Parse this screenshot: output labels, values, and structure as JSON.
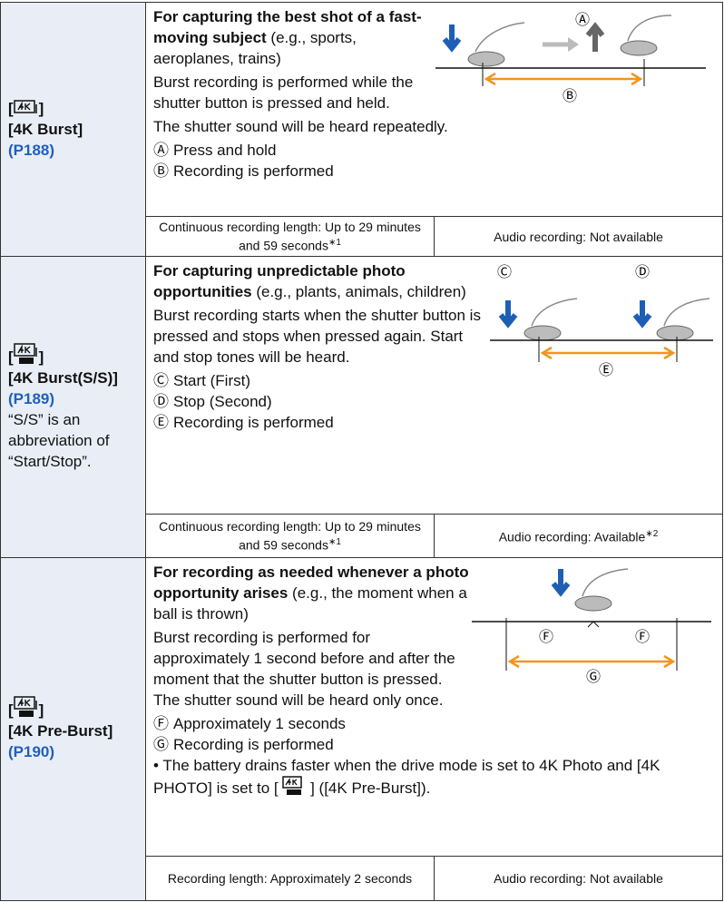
{
  "bracket_open": "[",
  "bracket_close": "]",
  "rows": [
    {
      "mode": {
        "label": "[4K Burst]",
        "page": "(P188)"
      },
      "heading": "For capturing the best shot of a fast-moving subject",
      "heading_note": "(e.g., sports, aeroplanes, trains)",
      "paragraphs": [
        "Burst recording is performed while the shutter button is pressed and held.",
        "The shutter sound will be heard repeatedly."
      ],
      "legend": [
        {
          "key": "Ⓐ",
          "text": "Press and hold"
        },
        {
          "key": "Ⓑ",
          "text": "Recording is performed"
        }
      ],
      "specs": [
        {
          "text": "Continuous recording length: Up to 29 minutes and 59 seconds",
          "note": "∗1"
        },
        {
          "text": "Audio recording: Not available"
        }
      ]
    },
    {
      "mode": {
        "label": "[4K Burst(S/S)]",
        "page": "(P189)",
        "remark": "“S/S” is an abbreviation of “Start/Stop”."
      },
      "heading": "For capturing unpredictable photo opportunities",
      "heading_note": "(e.g., plants, animals, children)",
      "paragraphs": [
        "Burst recording starts when the shutter button is pressed and stops when pressed again. Start and stop tones will be heard."
      ],
      "legend": [
        {
          "key": "Ⓒ",
          "text": "Start (First)"
        },
        {
          "key": "Ⓓ",
          "text": "Stop (Second)"
        },
        {
          "key": "Ⓔ",
          "text": "Recording is performed"
        }
      ],
      "specs": [
        {
          "text": "Continuous recording length: Up to 29 minutes and 59 seconds",
          "note": "∗1"
        },
        {
          "text": "Audio recording: Available",
          "note": "∗2"
        }
      ]
    },
    {
      "mode": {
        "label": "[4K Pre-Burst]",
        "page": "(P190)"
      },
      "heading": "For recording as needed whenever a photo opportunity arises",
      "heading_note": "(e.g., the moment when a ball is thrown)",
      "paragraphs": [
        "Burst recording is performed for approximately 1 second before and after the moment that the shutter button is pressed. The shutter sound will be heard only once."
      ],
      "legend": [
        {
          "key": "Ⓕ",
          "text": "Approximately 1 seconds"
        },
        {
          "key": "Ⓖ",
          "text": "Recording is performed"
        }
      ],
      "bullet": [
        "• The battery drains faster when the drive mode is set to 4K Photo and [4K PHOTO] is set to [",
        "] ([4K Pre-Burst])."
      ],
      "specs": [
        {
          "text": "Recording length: Approximately 2 seconds"
        },
        {
          "text": "Audio recording: Not available"
        }
      ]
    }
  ]
}
